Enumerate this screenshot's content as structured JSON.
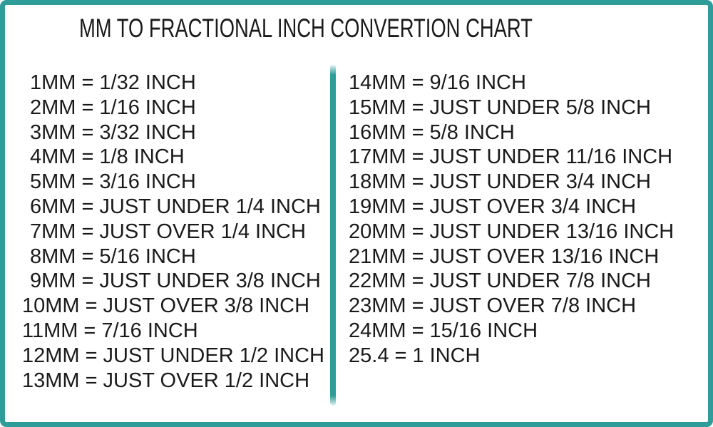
{
  "title": "MM TO FRACTIONAL INCH CONVERTION CHART",
  "colors": {
    "accent_teal": "#2E9C98",
    "text": "#1A1A1A",
    "background": "#FFFFFF"
  },
  "table": {
    "equals": "=",
    "left": [
      {
        "mm": "1MM",
        "inch": "1/32 INCH"
      },
      {
        "mm": "2MM",
        "inch": "1/16 INCH"
      },
      {
        "mm": "3MM",
        "inch": "3/32 INCH"
      },
      {
        "mm": "4MM",
        "inch": "1/8 INCH"
      },
      {
        "mm": "5MM",
        "inch": "3/16 INCH"
      },
      {
        "mm": "6MM",
        "inch": "JUST UNDER 1/4 INCH"
      },
      {
        "mm": "7MM",
        "inch": "JUST OVER 1/4 INCH"
      },
      {
        "mm": "8MM",
        "inch": "5/16 INCH"
      },
      {
        "mm": "9MM",
        "inch": "JUST UNDER 3/8 INCH"
      },
      {
        "mm": "10MM",
        "inch": "JUST OVER 3/8 INCH"
      },
      {
        "mm": "11MM",
        "inch": "7/16 INCH"
      },
      {
        "mm": "12MM",
        "inch": "JUST UNDER 1/2 INCH"
      },
      {
        "mm": "13MM",
        "inch": "JUST OVER 1/2 INCH"
      }
    ],
    "right": [
      {
        "mm": "14MM",
        "inch": "9/16 INCH"
      },
      {
        "mm": "15MM",
        "inch": "JUST UNDER 5/8 INCH"
      },
      {
        "mm": "16MM",
        "inch": "5/8 INCH"
      },
      {
        "mm": "17MM",
        "inch": "JUST UNDER 11/16 INCH"
      },
      {
        "mm": "18MM",
        "inch": "JUST UNDER 3/4 INCH"
      },
      {
        "mm": "19MM",
        "inch": "JUST OVER 3/4 INCH"
      },
      {
        "mm": "20MM",
        "inch": "JUST UNDER 13/16 INCH"
      },
      {
        "mm": "21MM",
        "inch": "JUST OVER 13/16 INCH"
      },
      {
        "mm": "22MM",
        "inch": "JUST UNDER 7/8 INCH"
      },
      {
        "mm": "23MM",
        "inch": "JUST OVER 7/8 INCH"
      },
      {
        "mm": "24MM",
        "inch": "15/16 INCH"
      },
      {
        "mm": "25.4",
        "inch": "1 INCH"
      }
    ]
  }
}
